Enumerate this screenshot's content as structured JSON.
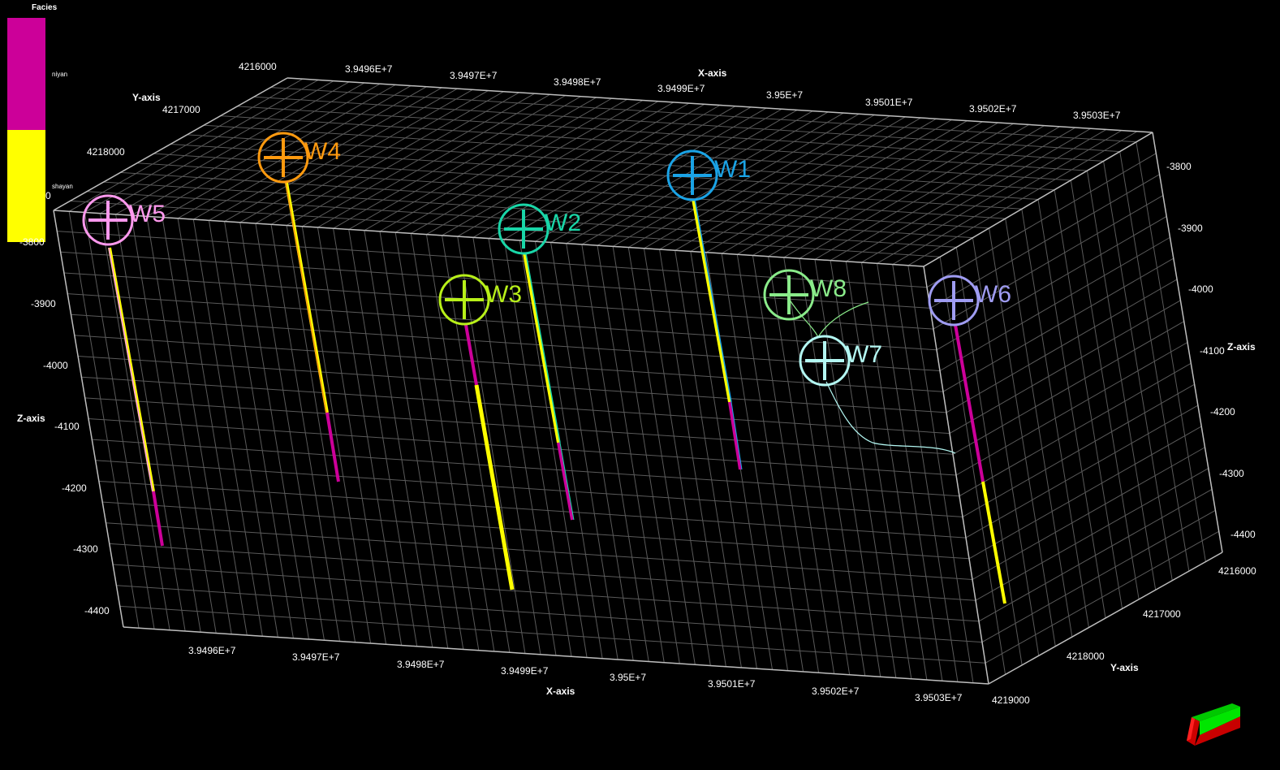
{
  "legend": {
    "title": "Facies",
    "items": [
      {
        "label": "niyan",
        "color": "#cc0099"
      },
      {
        "label": "shayan",
        "color": "#ffff00"
      }
    ]
  },
  "axes": {
    "x_title": "X-axis",
    "y_title": "Y-axis",
    "z_title": "Z-axis",
    "x_ticks": [
      "3.9496E+7",
      "3.9497E+7",
      "3.9498E+7",
      "3.9499E+7",
      "3.95E+7",
      "3.9501E+7",
      "3.9502E+7",
      "3.9503E+7"
    ],
    "y_ticks": [
      "4216000",
      "4217000",
      "4218000",
      "4219000"
    ],
    "z_ticks_left": [
      "-3800",
      "-3900",
      "-4000",
      "-4100",
      "-4200",
      "-4300",
      "-4400"
    ],
    "z_ticks_right": [
      "-3800",
      "-3900",
      "-4000",
      "-4100",
      "-4200",
      "-4300",
      "-4400"
    ],
    "y_top_ticks": [
      "4216000",
      "4217000",
      "4218000"
    ],
    "y_top_partial": "0"
  },
  "wells": [
    {
      "name": "W1",
      "color": "#1aa3e6"
    },
    {
      "name": "W2",
      "color": "#19d6a8"
    },
    {
      "name": "W3",
      "color": "#b8f019"
    },
    {
      "name": "W4",
      "color": "#ff9a0f"
    },
    {
      "name": "W5",
      "color": "#ff99ee"
    },
    {
      "name": "W6",
      "color": "#9f9cf2"
    },
    {
      "name": "W7",
      "color": "#b3f7f2"
    },
    {
      "name": "W8",
      "color": "#8aeb8a"
    }
  ],
  "colors": {
    "background": "#000000",
    "grid": "#5a5a5a",
    "edge": "#bdbdbd",
    "niyan": "#cc0099",
    "shayan": "#ffff00"
  }
}
